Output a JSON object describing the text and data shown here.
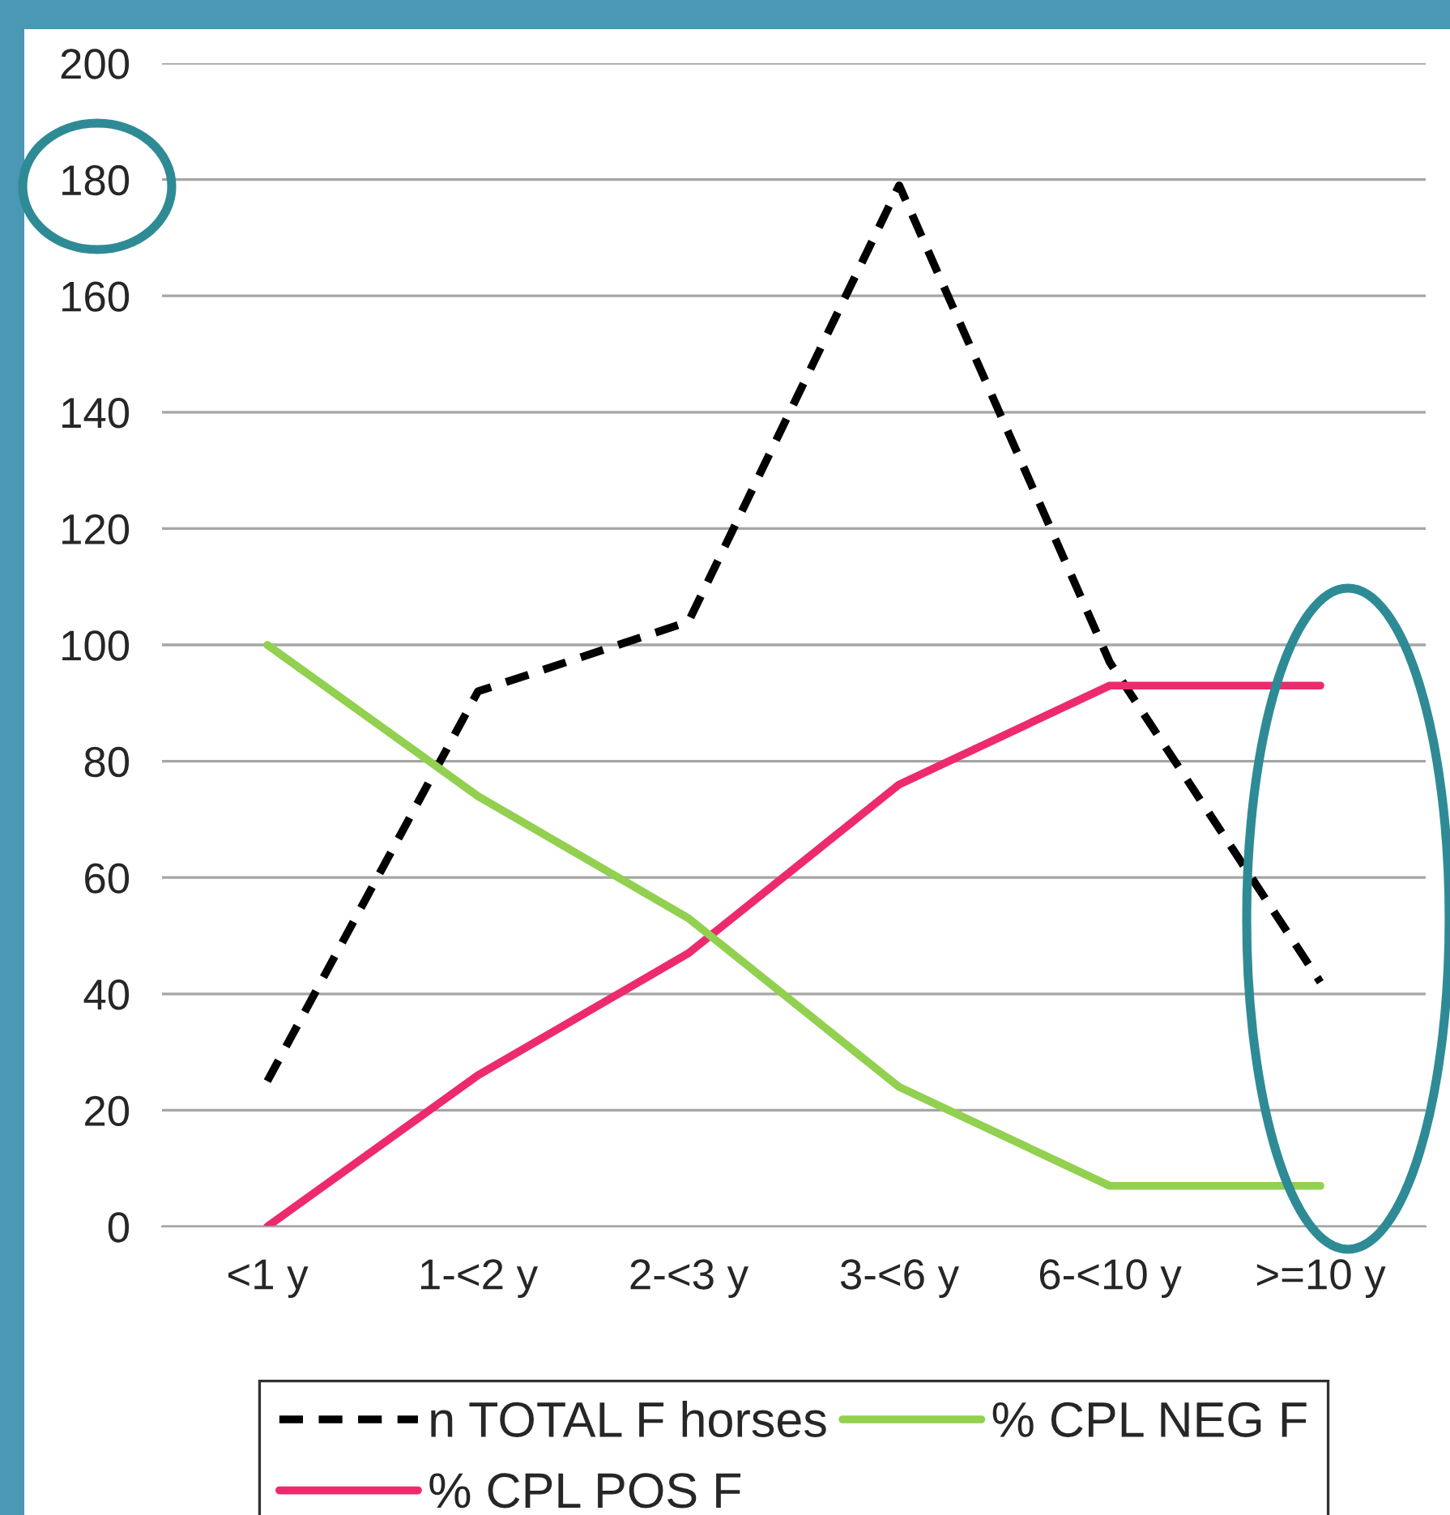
{
  "chart_data": {
    "type": "line",
    "categories": [
      "<1 y",
      "1-<2 y",
      "2-<3 y",
      "3-<6 y",
      "6-<10 y",
      ">=10 y"
    ],
    "series": [
      {
        "name": "n TOTAL F horses",
        "color": "#000000",
        "line_style": "dashed",
        "values": [
          25,
          92,
          104,
          179,
          97,
          42
        ]
      },
      {
        "name": "% CPL POS F",
        "color": "#ee2a6e",
        "line_style": "solid",
        "values": [
          0,
          26,
          47,
          76,
          93,
          93
        ]
      },
      {
        "name": "% CPL NEG F",
        "color": "#92d050",
        "line_style": "solid",
        "values": [
          100,
          74,
          53,
          24,
          7,
          7
        ]
      }
    ],
    "ylim": [
      0,
      200
    ],
    "yticks": [
      0,
      20,
      40,
      60,
      80,
      100,
      120,
      140,
      160,
      180,
      200
    ],
    "grid": "y",
    "legend": "bottom",
    "marker": "none"
  }
}
